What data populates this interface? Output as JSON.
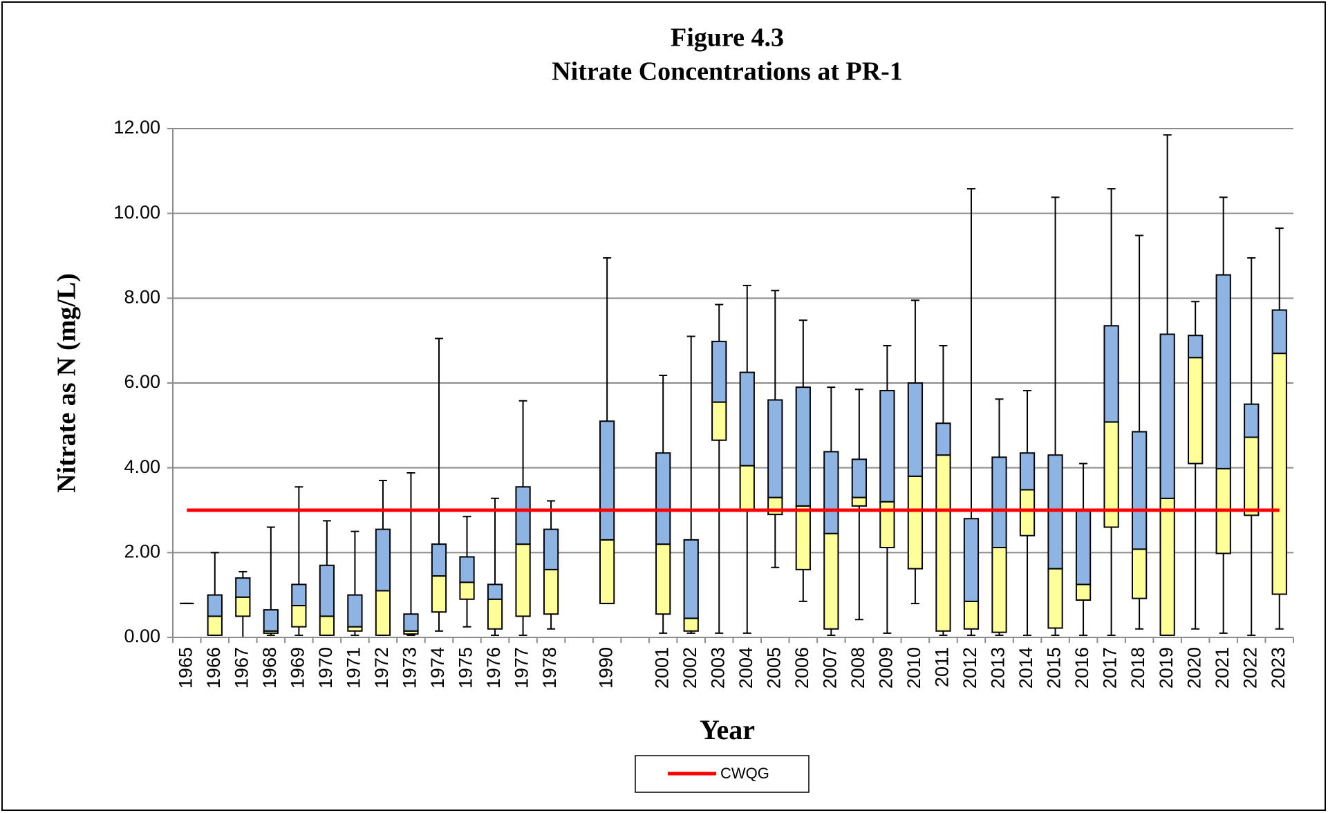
{
  "chart_data": {
    "type": "box",
    "title": "Figure 4.3",
    "subtitle": "Nitrate Concentrations at PR-1",
    "xlabel": "Year",
    "ylabel": "Nitrate as N (mg/L)",
    "categories": [
      "1965",
      "1966",
      "1967",
      "1968",
      "1969",
      "1970",
      "1971",
      "1972",
      "1973",
      "1974",
      "1975",
      "1976",
      "1977",
      "1978",
      null,
      "1990",
      null,
      "2001",
      "2002",
      "2003",
      "2004",
      "2005",
      "2006",
      "2007",
      "2008",
      "2009",
      "2010",
      "2011",
      "2012",
      "2013",
      "2014",
      "2015",
      "2016",
      "2017",
      "2018",
      "2019",
      "2020",
      "2021",
      "2022",
      "2023"
    ],
    "min": [
      0.8,
      0.05,
      0.0,
      0.05,
      0.05,
      0.05,
      0.05,
      0.05,
      0.05,
      0.15,
      0.25,
      0.05,
      0.05,
      0.2,
      null,
      0.8,
      null,
      0.1,
      0.1,
      0.1,
      0.1,
      1.65,
      0.85,
      0.05,
      0.42,
      0.1,
      0.8,
      0.05,
      0.05,
      0.05,
      0.05,
      0.05,
      0.05,
      0.05,
      0.2,
      0.05,
      0.2,
      0.1,
      0.05,
      0.2
    ],
    "q1": [
      0.8,
      0.05,
      0.5,
      0.1,
      0.25,
      0.05,
      0.15,
      0.05,
      0.08,
      0.6,
      0.9,
      0.2,
      0.5,
      0.55,
      null,
      0.8,
      null,
      0.55,
      0.15,
      4.65,
      3.0,
      2.9,
      1.6,
      0.2,
      3.1,
      2.12,
      1.62,
      0.15,
      0.2,
      0.12,
      2.4,
      0.22,
      0.88,
      2.6,
      0.92,
      0.05,
      4.1,
      1.98,
      2.88,
      1.02
    ],
    "median": [
      0.8,
      0.5,
      0.95,
      0.15,
      0.75,
      0.5,
      0.25,
      1.1,
      0.15,
      1.45,
      1.3,
      0.9,
      2.2,
      1.6,
      null,
      2.3,
      null,
      2.2,
      0.45,
      5.55,
      4.05,
      3.3,
      3.1,
      2.45,
      3.3,
      3.2,
      3.8,
      4.3,
      0.85,
      2.12,
      3.48,
      1.62,
      1.25,
      5.08,
      2.08,
      3.28,
      6.6,
      3.98,
      4.72,
      6.7
    ],
    "q3": [
      0.8,
      1.0,
      1.4,
      0.65,
      1.25,
      1.7,
      1.0,
      2.55,
      0.55,
      2.2,
      1.9,
      1.25,
      3.55,
      2.55,
      null,
      5.1,
      null,
      4.35,
      2.3,
      6.98,
      6.25,
      5.6,
      5.9,
      4.38,
      4.2,
      5.82,
      6.0,
      5.05,
      2.8,
      4.25,
      4.35,
      4.3,
      3.0,
      7.35,
      4.85,
      7.15,
      7.12,
      8.55,
      5.5,
      7.72
    ],
    "max": [
      0.8,
      2.0,
      1.55,
      2.6,
      3.55,
      2.75,
      2.5,
      3.7,
      3.88,
      7.05,
      2.85,
      3.28,
      5.58,
      3.22,
      null,
      8.95,
      null,
      6.18,
      7.1,
      7.85,
      8.3,
      8.18,
      7.48,
      5.9,
      5.85,
      6.88,
      7.95,
      6.88,
      10.58,
      5.62,
      5.82,
      10.38,
      4.1,
      10.58,
      9.48,
      11.85,
      7.92,
      10.38,
      8.95,
      9.65
    ],
    "lower_color": "#ffff99",
    "upper_color": "#8eb4e3",
    "reference": {
      "name": "CWQG",
      "value": 3.0,
      "color": "#ff0000"
    },
    "ylim": [
      0,
      12
    ],
    "yticks": [
      {
        "value": 0,
        "label": "0.00"
      },
      {
        "value": 2,
        "label": "2.00"
      },
      {
        "value": 4,
        "label": "4.00"
      },
      {
        "value": 6,
        "label": "6.00"
      },
      {
        "value": 8,
        "label": "8.00"
      },
      {
        "value": 10,
        "label": "10.00"
      },
      {
        "value": 12,
        "label": "12.00"
      }
    ],
    "grid": true,
    "legend": "bottom"
  }
}
